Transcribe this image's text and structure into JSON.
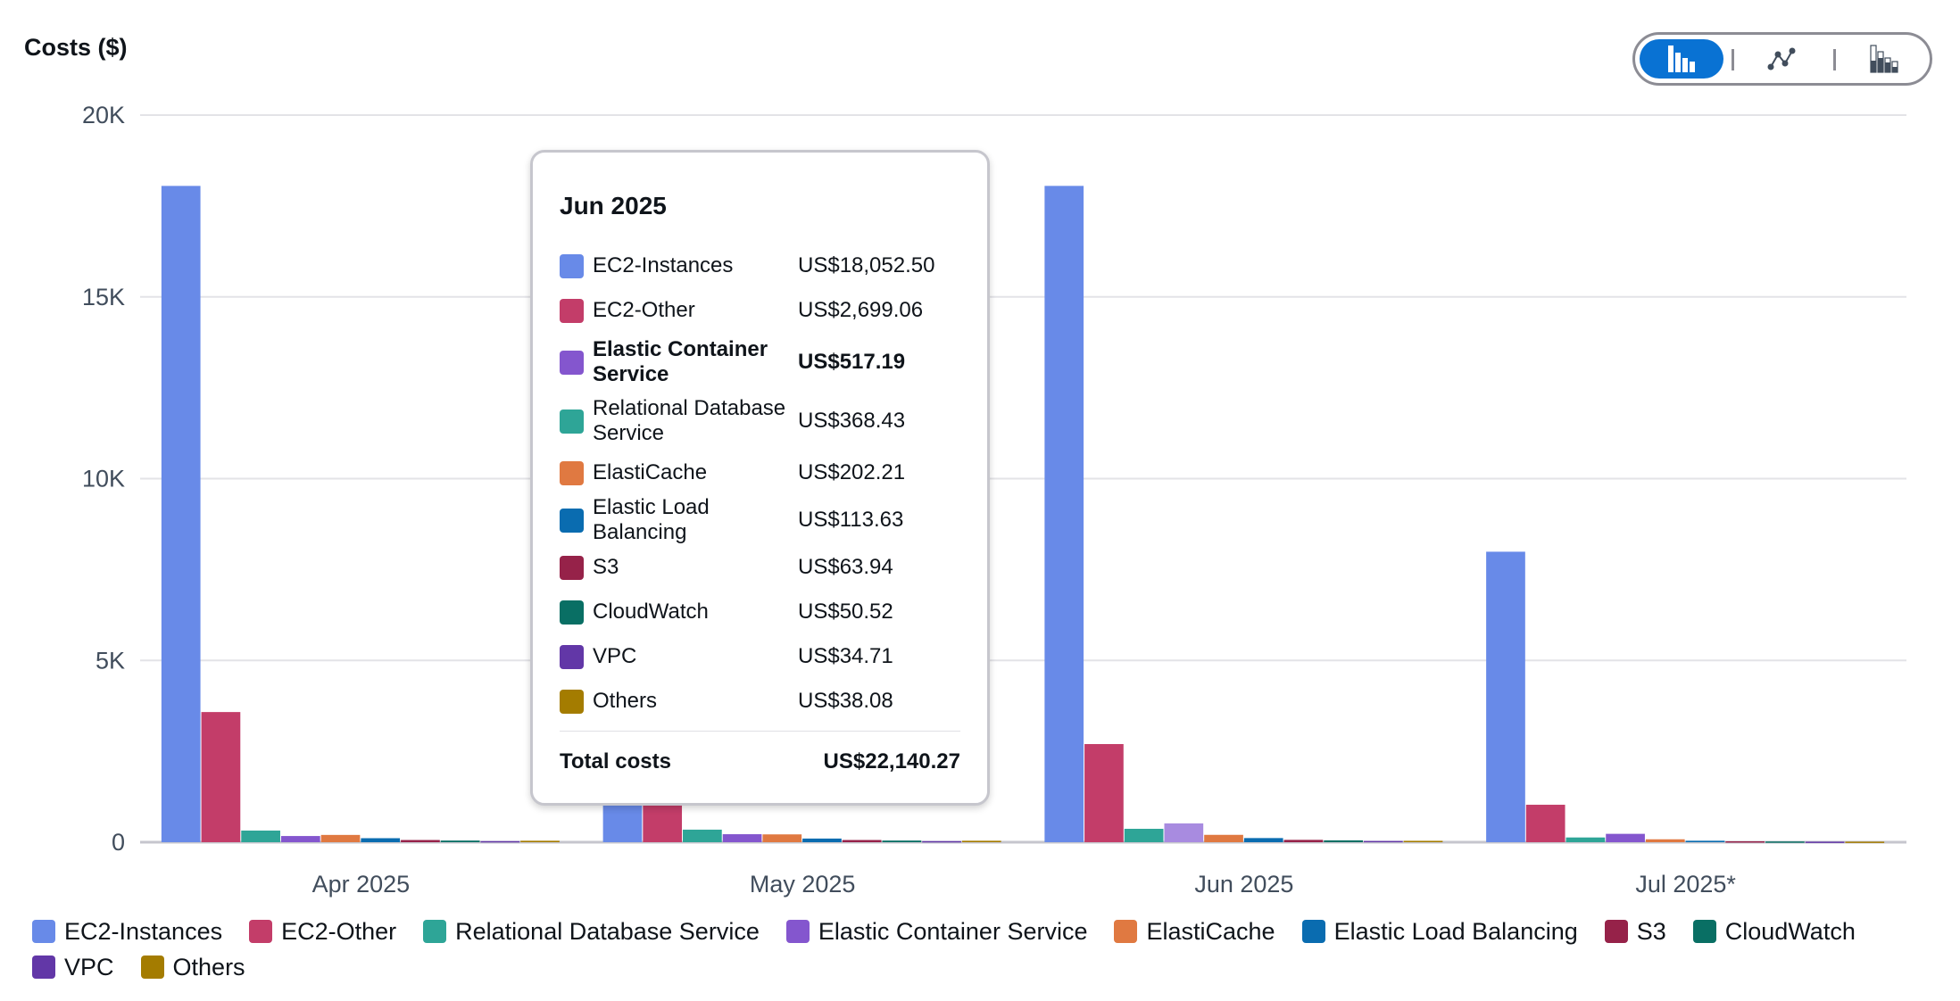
{
  "chart_data": {
    "type": "bar",
    "title": "Costs ($)",
    "categories": [
      "Apr 2025",
      "May 2025",
      "Jun 2025",
      "Jul 2025*"
    ],
    "ylim": [
      0,
      20000
    ],
    "yticks": [
      0,
      5000,
      10000,
      15000,
      20000
    ],
    "ytick_labels": [
      "0",
      "5K",
      "10K",
      "15K",
      "20K"
    ],
    "grid": true,
    "legend": "bottom",
    "series": [
      {
        "name": "EC2-Instances",
        "color": "#688ae8",
        "values": [
          18052,
          18000,
          18052.5,
          7990
        ]
      },
      {
        "name": "EC2-Other",
        "color": "#c33d69",
        "values": [
          3580,
          3200,
          2699.06,
          1030
        ]
      },
      {
        "name": "Relational Database Service",
        "color": "#2ea597",
        "values": [
          320,
          345,
          368.43,
          130
        ]
      },
      {
        "name": "Elastic Container Service",
        "color": "#8456ce",
        "values": [
          170,
          220,
          517.19,
          230
        ]
      },
      {
        "name": "ElastiCache",
        "color": "#e07941",
        "values": [
          200,
          215,
          202.21,
          80
        ]
      },
      {
        "name": "Elastic Load Balancing",
        "color": "#0a6cb0",
        "values": [
          110,
          100,
          113.63,
          40
        ]
      },
      {
        "name": "S3",
        "color": "#962249",
        "values": [
          60,
          60,
          63.94,
          25
        ]
      },
      {
        "name": "CloudWatch",
        "color": "#096f64",
        "values": [
          45,
          45,
          50.52,
          20
        ]
      },
      {
        "name": "VPC",
        "color": "#6237a7",
        "values": [
          30,
          30,
          34.71,
          15
        ]
      },
      {
        "name": "Others",
        "color": "#a47c00",
        "values": [
          40,
          40,
          38.08,
          15
        ]
      }
    ],
    "highlighted": {
      "category": "Jun 2025",
      "series": "Elastic Container Service",
      "color": "#a88be0"
    }
  },
  "chart_type_toggle": {
    "selected": "grouped-bar",
    "options": [
      {
        "icon": "grouped-bar-chart-icon",
        "color": "#0972d3"
      },
      {
        "icon": "line-chart-icon"
      },
      {
        "icon": "stacked-bar-chart-icon"
      }
    ]
  },
  "tooltip": {
    "title": "Jun 2025",
    "rows": [
      {
        "name": "EC2-Instances",
        "value": "US$18,052.50",
        "color": "#688ae8"
      },
      {
        "name": "EC2-Other",
        "value": "US$2,699.06",
        "color": "#c33d69"
      },
      {
        "name": "Elastic Container Service",
        "value": "US$517.19",
        "color": "#8456ce",
        "bold": true
      },
      {
        "name": "Relational Database Service",
        "value": "US$368.43",
        "color": "#2ea597"
      },
      {
        "name": "ElastiCache",
        "value": "US$202.21",
        "color": "#e07941"
      },
      {
        "name": "Elastic Load Balancing",
        "value": "US$113.63",
        "color": "#0a6cb0"
      },
      {
        "name": "S3",
        "value": "US$63.94",
        "color": "#962249"
      },
      {
        "name": "CloudWatch",
        "value": "US$50.52",
        "color": "#096f64"
      },
      {
        "name": "VPC",
        "value": "US$34.71",
        "color": "#6237a7"
      },
      {
        "name": "Others",
        "value": "US$38.08",
        "color": "#a47c00"
      }
    ],
    "total_label": "Total costs",
    "total_value": "US$22,140.27"
  },
  "legend": [
    {
      "name": "EC2-Instances",
      "color": "#688ae8"
    },
    {
      "name": "EC2-Other",
      "color": "#c33d69"
    },
    {
      "name": "Relational Database Service",
      "color": "#2ea597"
    },
    {
      "name": "Elastic Container Service",
      "color": "#8456ce"
    },
    {
      "name": "ElastiCache",
      "color": "#e07941"
    },
    {
      "name": "Elastic Load Balancing",
      "color": "#0a6cb0"
    },
    {
      "name": "S3",
      "color": "#962249"
    },
    {
      "name": "CloudWatch",
      "color": "#096f64"
    },
    {
      "name": "VPC",
      "color": "#6237a7"
    },
    {
      "name": "Others",
      "color": "#a47c00"
    }
  ]
}
